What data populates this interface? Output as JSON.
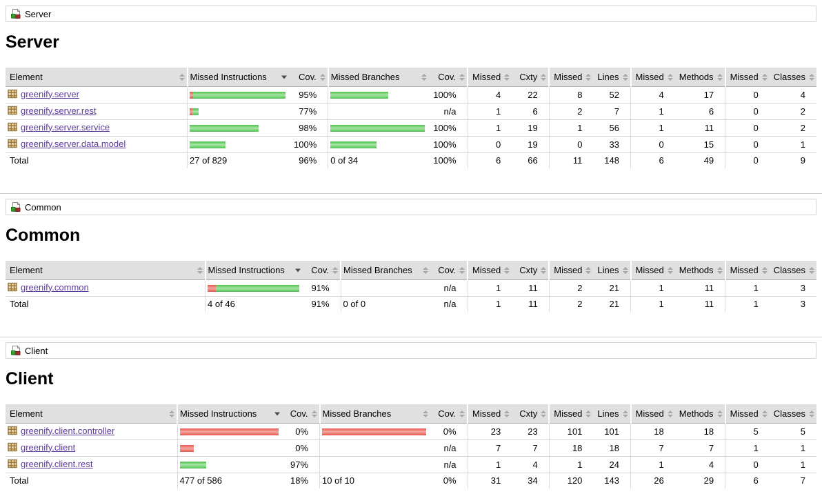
{
  "theme": {
    "link_color": "#5c3d99",
    "header_bg": "#e0e0e0",
    "row_border": "#d6d3ce",
    "divider": "#cccccc",
    "bar_red": "#e4574e",
    "bar_red_light": "#f7a8a2",
    "bar_green": "#4fc24f",
    "bar_green_light": "#a6e6a6",
    "group_icon_green": "#35a32f",
    "group_icon_red": "#a82d2d",
    "package_icon_tan": "#9c7a3f"
  },
  "sections": [
    {
      "id": "server",
      "breadcrumb": "Server",
      "heading": "Server",
      "columns": [
        "Element",
        "Missed Instructions",
        "Cov.",
        "Missed Branches",
        "Cov.",
        "Missed",
        "Cxty",
        "Missed",
        "Lines",
        "Missed",
        "Methods",
        "Missed",
        "Classes"
      ],
      "sorted_column": 1,
      "sort_direction": "desc",
      "rows": [
        {
          "element": "greenify.server",
          "instr_bar": {
            "red": 5,
            "green": 134
          },
          "instr_cov": "95%",
          "branch_bar": {
            "red": 0,
            "green": 84
          },
          "branch_cov": "100%",
          "ctrs": [
            "4",
            "22",
            "8",
            "52",
            "4",
            "17",
            "0",
            "4"
          ]
        },
        {
          "element": "greenify.server.rest",
          "instr_bar": {
            "red": 4,
            "green": 9
          },
          "instr_cov": "77%",
          "branch_bar": null,
          "branch_cov": "n/a",
          "ctrs": [
            "1",
            "6",
            "2",
            "7",
            "1",
            "6",
            "0",
            "2"
          ]
        },
        {
          "element": "greenify.server.service",
          "instr_bar": {
            "red": 0,
            "green": 100
          },
          "instr_cov": "98%",
          "branch_bar": {
            "red": 0,
            "green": 137
          },
          "branch_cov": "100%",
          "ctrs": [
            "1",
            "19",
            "1",
            "56",
            "1",
            "11",
            "0",
            "2"
          ]
        },
        {
          "element": "greenify.server.data.model",
          "instr_bar": {
            "red": 0,
            "green": 52
          },
          "instr_cov": "100%",
          "branch_bar": {
            "red": 0,
            "green": 67
          },
          "branch_cov": "100%",
          "ctrs": [
            "0",
            "19",
            "0",
            "33",
            "0",
            "15",
            "0",
            "1"
          ]
        }
      ],
      "total": {
        "label": "Total",
        "instr": "27 of 829",
        "instr_cov": "96%",
        "branch": "0 of 34",
        "branch_cov": "100%",
        "ctrs": [
          "6",
          "66",
          "11",
          "148",
          "6",
          "49",
          "0",
          "9"
        ]
      }
    },
    {
      "id": "common",
      "breadcrumb": "Common",
      "heading": "Common",
      "columns": [
        "Element",
        "Missed Instructions",
        "Cov.",
        "Missed Branches",
        "Cov.",
        "Missed",
        "Cxty",
        "Missed",
        "Lines",
        "Missed",
        "Methods",
        "Missed",
        "Classes"
      ],
      "sorted_column": 1,
      "sort_direction": "desc",
      "rows": [
        {
          "element": "greenify.common",
          "instr_bar": {
            "red": 12,
            "green": 121
          },
          "instr_cov": "91%",
          "branch_bar": null,
          "branch_cov": "n/a",
          "ctrs": [
            "1",
            "11",
            "2",
            "21",
            "1",
            "11",
            "1",
            "3"
          ]
        }
      ],
      "total": {
        "label": "Total",
        "instr": "4 of 46",
        "instr_cov": "91%",
        "branch": "0 of 0",
        "branch_cov": "n/a",
        "ctrs": [
          "1",
          "11",
          "2",
          "21",
          "1",
          "11",
          "1",
          "3"
        ]
      }
    },
    {
      "id": "client",
      "breadcrumb": "Client",
      "heading": "Client",
      "columns": [
        "Element",
        "Missed Instructions",
        "Cov.",
        "Missed Branches",
        "Cov.",
        "Missed",
        "Cxty",
        "Missed",
        "Lines",
        "Missed",
        "Methods",
        "Missed",
        "Classes"
      ],
      "sorted_column": 1,
      "sort_direction": "desc",
      "rows": [
        {
          "element": "greenify.client.controller",
          "instr_bar": {
            "red": 143,
            "green": 0
          },
          "instr_cov": "0%",
          "branch_bar": {
            "red": 151,
            "green": 0
          },
          "branch_cov": "0%",
          "ctrs": [
            "23",
            "23",
            "101",
            "101",
            "18",
            "18",
            "5",
            "5"
          ]
        },
        {
          "element": "greenify.client",
          "instr_bar": {
            "red": 20,
            "green": 0
          },
          "instr_cov": "0%",
          "branch_bar": null,
          "branch_cov": "n/a",
          "ctrs": [
            "7",
            "7",
            "18",
            "18",
            "7",
            "7",
            "1",
            "1"
          ]
        },
        {
          "element": "greenify.client.rest",
          "instr_bar": {
            "red": 0,
            "green": 38
          },
          "instr_cov": "97%",
          "branch_bar": null,
          "branch_cov": "n/a",
          "ctrs": [
            "1",
            "4",
            "1",
            "24",
            "1",
            "4",
            "0",
            "1"
          ]
        }
      ],
      "total": {
        "label": "Total",
        "instr": "477 of 586",
        "instr_cov": "18%",
        "branch": "10 of 10",
        "branch_cov": "0%",
        "ctrs": [
          "31",
          "34",
          "120",
          "143",
          "26",
          "29",
          "6",
          "7"
        ]
      }
    }
  ]
}
